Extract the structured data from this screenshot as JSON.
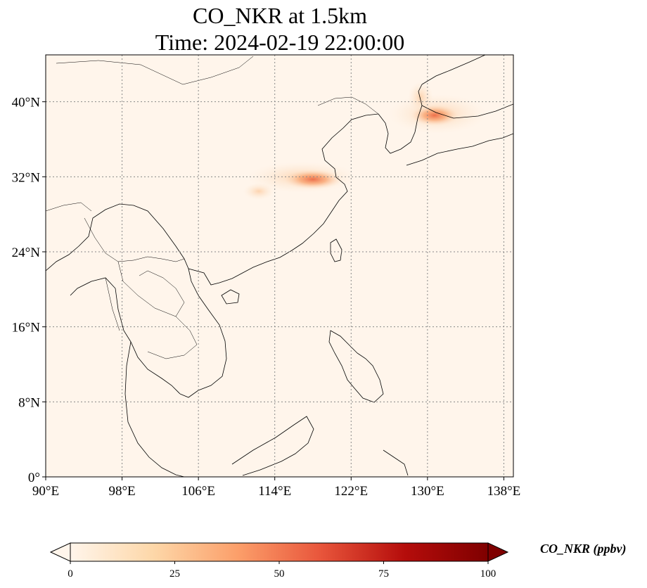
{
  "title": {
    "line1": "CO_NKR at 1.5km",
    "line2": "Time: 2024-02-19 22:00:00"
  },
  "map": {
    "extent_lon": [
      90,
      139
    ],
    "extent_lat": [
      0,
      45
    ],
    "x_ticks": [
      {
        "lon": 90,
        "label": "90°E"
      },
      {
        "lon": 98,
        "label": "98°E"
      },
      {
        "lon": 106,
        "label": "106°E"
      },
      {
        "lon": 114,
        "label": "114°E"
      },
      {
        "lon": 122,
        "label": "122°E"
      },
      {
        "lon": 130,
        "label": "130°E"
      },
      {
        "lon": 138,
        "label": "138°E"
      }
    ],
    "y_ticks": [
      {
        "lat": 0,
        "label": "0°"
      },
      {
        "lat": 8,
        "label": "8°N"
      },
      {
        "lat": 16,
        "label": "16°N"
      },
      {
        "lat": 24,
        "label": "24°N"
      },
      {
        "lat": 32,
        "label": "32°N"
      },
      {
        "lat": 40,
        "label": "40°N"
      }
    ],
    "gridlines": true,
    "background_color": "#fff5eb",
    "plume_regions": [
      "Yangtze River Delta / eastern China",
      "Korean Peninsula to Sea of Japan"
    ]
  },
  "colorbar": {
    "label": "CO_NKR (ppbv)",
    "colormap": "OrRd",
    "range": [
      0,
      100
    ],
    "ticks": [
      "0",
      "25",
      "50",
      "75",
      "100"
    ],
    "extend": "both",
    "colors": [
      "#fff5eb",
      "#fdd7a8",
      "#fc9f6a",
      "#e8553b",
      "#b50d0b",
      "#7f0000"
    ]
  }
}
